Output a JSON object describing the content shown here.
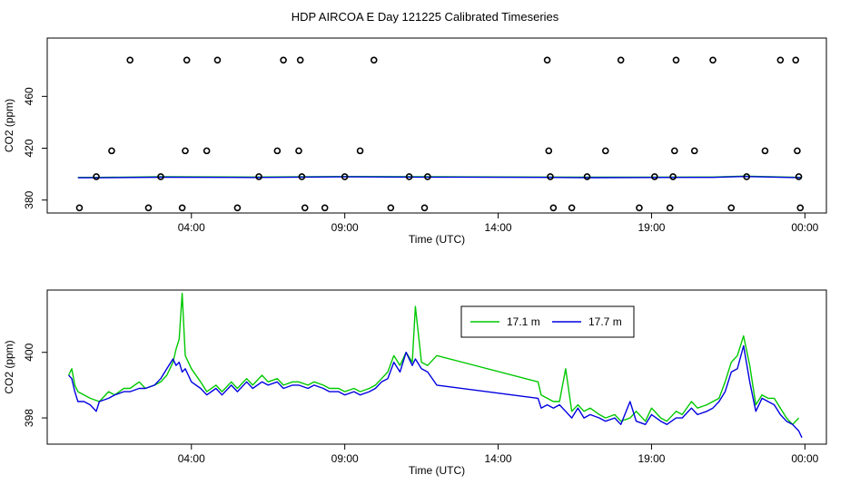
{
  "page": {
    "title": "HDP AIRCOA E  Day 121225  Calibrated Timeseries"
  },
  "colors": {
    "green": "#00c800",
    "blue": "#0000e0",
    "axis": "#000000",
    "points": "#000000"
  },
  "chart_data": [
    {
      "type": "scatter",
      "title": "",
      "xlabel": "Time (UTC)",
      "ylabel": "CO2 (ppm)",
      "xlim": [
        -0.7,
        24.7
      ],
      "ylim": [
        370,
        505
      ],
      "x_ticks": [
        {
          "value": 4,
          "label": "04:00"
        },
        {
          "value": 9,
          "label": "09:00"
        },
        {
          "value": 14,
          "label": "14:00"
        },
        {
          "value": 19,
          "label": "19:00"
        },
        {
          "value": 24,
          "label": "00:00"
        }
      ],
      "y_ticks": [
        {
          "value": 380,
          "label": "380"
        },
        {
          "value": 420,
          "label": "420"
        },
        {
          "value": 460,
          "label": "460"
        }
      ],
      "points": [
        [
          0.35,
          374
        ],
        [
          0.9,
          398
        ],
        [
          1.4,
          418
        ],
        [
          2.0,
          488
        ],
        [
          2.6,
          374
        ],
        [
          3.0,
          398
        ],
        [
          3.7,
          374
        ],
        [
          3.8,
          418
        ],
        [
          3.85,
          488
        ],
        [
          4.5,
          418
        ],
        [
          4.85,
          488
        ],
        [
          5.5,
          374
        ],
        [
          6.2,
          398
        ],
        [
          6.8,
          418
        ],
        [
          7.0,
          488
        ],
        [
          7.5,
          418
        ],
        [
          7.55,
          488
        ],
        [
          7.6,
          398
        ],
        [
          7.7,
          374
        ],
        [
          8.35,
          374
        ],
        [
          9.0,
          398
        ],
        [
          9.5,
          418
        ],
        [
          9.95,
          488
        ],
        [
          10.5,
          374
        ],
        [
          11.1,
          398
        ],
        [
          11.6,
          374
        ],
        [
          11.7,
          398
        ],
        [
          15.6,
          488
        ],
        [
          15.65,
          418
        ],
        [
          15.7,
          398
        ],
        [
          15.8,
          374
        ],
        [
          16.4,
          374
        ],
        [
          16.9,
          398
        ],
        [
          17.5,
          418
        ],
        [
          18.0,
          488
        ],
        [
          18.6,
          374
        ],
        [
          19.1,
          398
        ],
        [
          19.6,
          374
        ],
        [
          19.7,
          398
        ],
        [
          19.75,
          418
        ],
        [
          19.8,
          488
        ],
        [
          20.4,
          418
        ],
        [
          21.0,
          488
        ],
        [
          21.6,
          374
        ],
        [
          22.1,
          398
        ],
        [
          22.7,
          418
        ],
        [
          23.2,
          488
        ],
        [
          23.7,
          488
        ],
        [
          23.75,
          418
        ],
        [
          23.8,
          398
        ],
        [
          23.85,
          374
        ]
      ],
      "series": [
        {
          "color_key": "green",
          "x": [
            0.3,
            1.0,
            3.0,
            6.0,
            9.0,
            11.5,
            12.0,
            15.5,
            17.0,
            19.0,
            21.0,
            22.0,
            23.9
          ],
          "y": [
            397.5,
            397.5,
            398.0,
            397.8,
            398.2,
            398.0,
            398.0,
            397.8,
            397.6,
            397.7,
            397.8,
            398.5,
            397.5
          ]
        },
        {
          "color_key": "blue",
          "x": [
            0.3,
            1.0,
            3.0,
            6.0,
            9.0,
            11.5,
            12.0,
            15.5,
            17.0,
            19.0,
            21.0,
            22.0,
            23.9
          ],
          "y": [
            397.2,
            397.2,
            397.6,
            397.4,
            397.9,
            397.7,
            397.7,
            397.5,
            397.3,
            397.4,
            397.5,
            398.2,
            397.2
          ]
        }
      ]
    },
    {
      "type": "line",
      "title": "",
      "xlabel": "Time (UTC)",
      "ylabel": "CO2 (ppm)",
      "xlim": [
        -0.7,
        24.7
      ],
      "ylim": [
        397.2,
        401.9
      ],
      "x_ticks": [
        {
          "value": 4,
          "label": "04:00"
        },
        {
          "value": 9,
          "label": "09:00"
        },
        {
          "value": 14,
          "label": "14:00"
        },
        {
          "value": 19,
          "label": "19:00"
        },
        {
          "value": 24,
          "label": "00:00"
        }
      ],
      "y_ticks": [
        {
          "value": 398,
          "label": "398"
        },
        {
          "value": 400,
          "label": "400"
        }
      ],
      "legend": {
        "position": "top-center",
        "entries": [
          {
            "label": "17.1 m",
            "color_key": "green"
          },
          {
            "label": "17.7 m",
            "color_key": "blue"
          }
        ]
      },
      "series": [
        {
          "name": "17.1 m",
          "color_key": "green",
          "x": [
            0.0,
            0.1,
            0.2,
            0.3,
            0.5,
            0.7,
            1.0,
            1.3,
            1.5,
            1.8,
            2.0,
            2.3,
            2.5,
            2.8,
            3.0,
            3.2,
            3.4,
            3.5,
            3.6,
            3.7,
            3.8,
            3.9,
            4.0,
            4.3,
            4.5,
            4.8,
            5.0,
            5.3,
            5.5,
            5.8,
            6.0,
            6.3,
            6.5,
            6.8,
            7.0,
            7.3,
            7.5,
            7.8,
            8.0,
            8.3,
            8.5,
            8.8,
            9.0,
            9.3,
            9.5,
            9.8,
            10.0,
            10.2,
            10.4,
            10.6,
            10.8,
            11.0,
            11.2,
            11.3,
            11.5,
            11.7,
            12.0,
            15.3,
            15.4,
            15.6,
            15.8,
            16.0,
            16.2,
            16.4,
            16.6,
            16.8,
            17.0,
            17.3,
            17.5,
            17.8,
            18.0,
            18.3,
            18.5,
            18.8,
            19.0,
            19.3,
            19.5,
            19.8,
            20.0,
            20.3,
            20.5,
            20.8,
            21.0,
            21.2,
            21.4,
            21.6,
            21.8,
            22.0,
            22.2,
            22.4,
            22.6,
            22.8,
            23.0,
            23.2,
            23.4,
            23.6,
            23.8
          ],
          "y": [
            399.3,
            399.5,
            399.0,
            398.8,
            398.7,
            398.6,
            398.5,
            398.8,
            398.7,
            398.9,
            398.9,
            399.1,
            398.9,
            399.0,
            399.1,
            399.3,
            399.7,
            400.1,
            400.4,
            401.8,
            399.9,
            399.7,
            399.5,
            399.1,
            398.8,
            399.0,
            398.8,
            399.1,
            398.9,
            399.2,
            399.0,
            399.3,
            399.1,
            399.2,
            399.0,
            399.1,
            399.1,
            399.0,
            399.1,
            399.0,
            398.9,
            398.9,
            398.8,
            398.9,
            398.8,
            398.9,
            399.0,
            399.2,
            399.4,
            399.9,
            399.6,
            400.0,
            399.7,
            401.4,
            399.7,
            399.6,
            399.9,
            399.1,
            398.7,
            398.6,
            398.5,
            398.5,
            399.5,
            398.2,
            398.4,
            398.2,
            398.3,
            398.1,
            398.0,
            398.1,
            397.9,
            398.0,
            398.2,
            397.9,
            398.3,
            398.0,
            397.9,
            398.2,
            398.1,
            398.5,
            398.3,
            398.4,
            398.5,
            398.6,
            399.1,
            399.7,
            399.9,
            400.5,
            399.6,
            398.4,
            398.7,
            398.6,
            398.6,
            398.3,
            398.0,
            397.8,
            398.0
          ]
        },
        {
          "name": "17.7 m",
          "color_key": "blue",
          "x": [
            0.0,
            0.1,
            0.2,
            0.3,
            0.5,
            0.7,
            0.9,
            1.0,
            1.3,
            1.5,
            1.8,
            2.0,
            2.3,
            2.5,
            2.8,
            3.0,
            3.2,
            3.4,
            3.5,
            3.6,
            3.7,
            3.8,
            3.9,
            4.0,
            4.3,
            4.5,
            4.8,
            5.0,
            5.3,
            5.5,
            5.8,
            6.0,
            6.3,
            6.5,
            6.8,
            7.0,
            7.3,
            7.5,
            7.8,
            8.0,
            8.3,
            8.5,
            8.8,
            9.0,
            9.3,
            9.5,
            9.8,
            10.0,
            10.2,
            10.4,
            10.6,
            10.8,
            11.0,
            11.2,
            11.3,
            11.5,
            11.7,
            12.0,
            15.3,
            15.4,
            15.6,
            15.8,
            16.0,
            16.2,
            16.4,
            16.6,
            16.8,
            17.0,
            17.3,
            17.5,
            17.8,
            18.0,
            18.3,
            18.5,
            18.8,
            19.0,
            19.3,
            19.5,
            19.8,
            20.0,
            20.3,
            20.5,
            20.8,
            21.0,
            21.2,
            21.4,
            21.6,
            21.8,
            22.0,
            22.2,
            22.4,
            22.6,
            22.8,
            23.0,
            23.2,
            23.4,
            23.6,
            23.8,
            23.9
          ],
          "y": [
            399.3,
            399.2,
            398.8,
            398.5,
            398.5,
            398.4,
            398.2,
            398.5,
            398.6,
            398.7,
            398.8,
            398.8,
            398.9,
            398.9,
            399.0,
            399.2,
            399.5,
            399.8,
            399.6,
            399.7,
            399.4,
            399.5,
            399.3,
            399.1,
            398.9,
            398.7,
            398.9,
            398.7,
            399.0,
            398.8,
            399.1,
            398.9,
            399.1,
            399.0,
            399.1,
            398.9,
            399.0,
            399.0,
            398.9,
            399.0,
            398.9,
            398.8,
            398.8,
            398.7,
            398.8,
            398.7,
            398.8,
            398.9,
            399.1,
            399.2,
            399.7,
            399.4,
            400.0,
            399.6,
            399.8,
            399.5,
            399.4,
            399.0,
            398.6,
            398.3,
            398.4,
            398.3,
            398.4,
            398.2,
            398.0,
            398.3,
            398.0,
            398.1,
            398.0,
            397.9,
            398.0,
            397.8,
            398.5,
            397.9,
            397.8,
            398.1,
            397.9,
            397.8,
            398.0,
            398.0,
            398.3,
            398.1,
            398.2,
            398.3,
            398.5,
            398.8,
            399.4,
            399.5,
            400.2,
            399.1,
            398.2,
            398.6,
            398.5,
            398.4,
            398.1,
            397.9,
            397.8,
            397.6,
            397.4
          ]
        }
      ]
    }
  ]
}
